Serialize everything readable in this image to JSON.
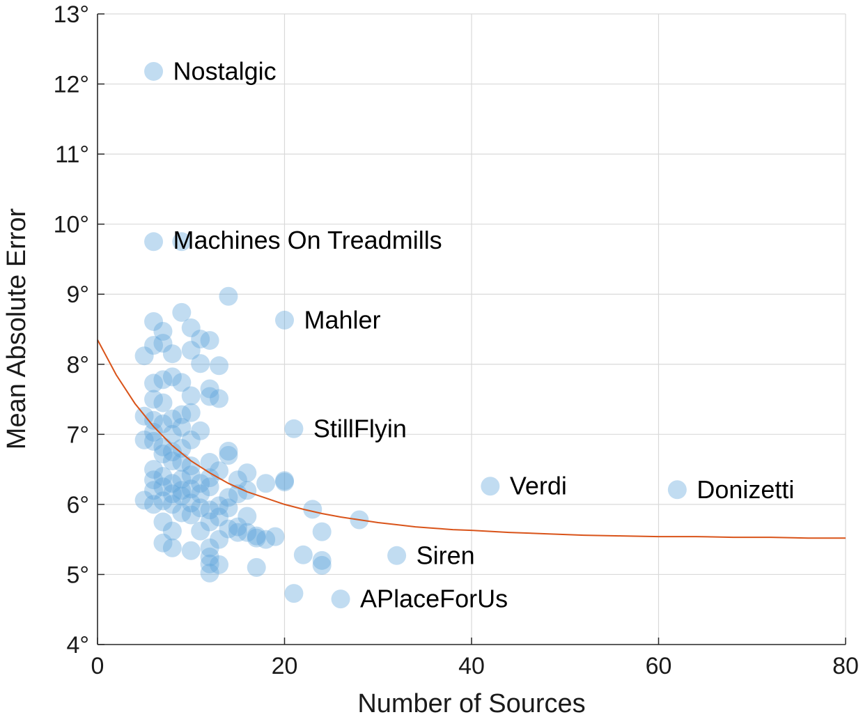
{
  "chart_data": {
    "type": "scatter",
    "title": "",
    "xlabel": "Number of Sources",
    "ylabel": "Mean Absolute Error",
    "xlim": [
      0,
      80
    ],
    "ylim": [
      4,
      13
    ],
    "x_ticks": [
      0,
      20,
      40,
      60,
      80
    ],
    "x_tick_labels": [
      "0",
      "20",
      "40",
      "60",
      "80"
    ],
    "y_ticks": [
      4,
      5,
      6,
      7,
      8,
      9,
      10,
      11,
      12,
      13
    ],
    "y_tick_labels": [
      "4°",
      "5°",
      "6°",
      "7°",
      "8°",
      "9°",
      "10°",
      "11°",
      "12°",
      "13°"
    ],
    "grid": true,
    "colors": {
      "points": "#5ba3d9",
      "fit": "#d95319",
      "grid": "#d9d9d9",
      "axis": "#262626"
    },
    "points": [
      {
        "x": 6,
        "y": 12.18
      },
      {
        "x": 6,
        "y": 9.75
      },
      {
        "x": 9,
        "y": 9.75
      },
      {
        "x": 14,
        "y": 8.97
      },
      {
        "x": 20,
        "y": 8.63
      },
      {
        "x": 21,
        "y": 7.08
      },
      {
        "x": 42,
        "y": 6.26
      },
      {
        "x": 62,
        "y": 6.21
      },
      {
        "x": 32,
        "y": 5.27
      },
      {
        "x": 26,
        "y": 4.65
      },
      {
        "x": 21,
        "y": 4.73
      },
      {
        "x": 6,
        "y": 8.61
      },
      {
        "x": 7,
        "y": 8.47
      },
      {
        "x": 9,
        "y": 8.74
      },
      {
        "x": 10,
        "y": 8.52
      },
      {
        "x": 6,
        "y": 8.27
      },
      {
        "x": 7,
        "y": 8.3
      },
      {
        "x": 8,
        "y": 8.15
      },
      {
        "x": 5,
        "y": 8.12
      },
      {
        "x": 11,
        "y": 8.36
      },
      {
        "x": 12,
        "y": 8.34
      },
      {
        "x": 11,
        "y": 8.01
      },
      {
        "x": 10,
        "y": 8.2
      },
      {
        "x": 13,
        "y": 7.98
      },
      {
        "x": 12,
        "y": 7.65
      },
      {
        "x": 13,
        "y": 7.51
      },
      {
        "x": 12,
        "y": 7.54
      },
      {
        "x": 6,
        "y": 7.73
      },
      {
        "x": 7,
        "y": 7.78
      },
      {
        "x": 8,
        "y": 7.82
      },
      {
        "x": 9,
        "y": 7.74
      },
      {
        "x": 6,
        "y": 7.5
      },
      {
        "x": 7,
        "y": 7.45
      },
      {
        "x": 10,
        "y": 7.55
      },
      {
        "x": 10,
        "y": 7.31
      },
      {
        "x": 5,
        "y": 7.26
      },
      {
        "x": 6,
        "y": 7.2
      },
      {
        "x": 7,
        "y": 7.15
      },
      {
        "x": 8,
        "y": 7.22
      },
      {
        "x": 9,
        "y": 7.28
      },
      {
        "x": 9,
        "y": 7.1
      },
      {
        "x": 6,
        "y": 7.03
      },
      {
        "x": 8,
        "y": 7.0
      },
      {
        "x": 11,
        "y": 7.05
      },
      {
        "x": 5,
        "y": 6.92
      },
      {
        "x": 6,
        "y": 6.9
      },
      {
        "x": 7,
        "y": 6.82
      },
      {
        "x": 7,
        "y": 6.72
      },
      {
        "x": 8,
        "y": 6.75
      },
      {
        "x": 9,
        "y": 6.8
      },
      {
        "x": 10,
        "y": 6.92
      },
      {
        "x": 9,
        "y": 6.6
      },
      {
        "x": 10,
        "y": 6.55
      },
      {
        "x": 8,
        "y": 6.62
      },
      {
        "x": 14,
        "y": 6.76
      },
      {
        "x": 14,
        "y": 6.7
      },
      {
        "x": 12,
        "y": 6.6
      },
      {
        "x": 13,
        "y": 6.48
      },
      {
        "x": 16,
        "y": 6.45
      },
      {
        "x": 6,
        "y": 6.5
      },
      {
        "x": 6,
        "y": 6.35
      },
      {
        "x": 7,
        "y": 6.4
      },
      {
        "x": 8,
        "y": 6.3
      },
      {
        "x": 9,
        "y": 6.36
      },
      {
        "x": 10,
        "y": 6.42
      },
      {
        "x": 11,
        "y": 6.3
      },
      {
        "x": 12,
        "y": 6.38
      },
      {
        "x": 15,
        "y": 6.35
      },
      {
        "x": 16,
        "y": 6.2
      },
      {
        "x": 18,
        "y": 6.3
      },
      {
        "x": 20,
        "y": 6.32
      },
      {
        "x": 20,
        "y": 6.34
      },
      {
        "x": 6,
        "y": 6.2
      },
      {
        "x": 7,
        "y": 6.25
      },
      {
        "x": 8,
        "y": 6.15
      },
      {
        "x": 9,
        "y": 6.2
      },
      {
        "x": 9,
        "y": 6.12
      },
      {
        "x": 10,
        "y": 6.22
      },
      {
        "x": 11,
        "y": 6.15
      },
      {
        "x": 12,
        "y": 6.25
      },
      {
        "x": 14,
        "y": 6.1
      },
      {
        "x": 15,
        "y": 6.15
      },
      {
        "x": 5,
        "y": 6.06
      },
      {
        "x": 6,
        "y": 6.0
      },
      {
        "x": 7,
        "y": 6.05
      },
      {
        "x": 8,
        "y": 6.0
      },
      {
        "x": 10,
        "y": 6.02
      },
      {
        "x": 11,
        "y": 5.95
      },
      {
        "x": 12,
        "y": 5.92
      },
      {
        "x": 13,
        "y": 5.98
      },
      {
        "x": 14,
        "y": 5.95
      },
      {
        "x": 9,
        "y": 5.88
      },
      {
        "x": 10,
        "y": 5.85
      },
      {
        "x": 13,
        "y": 5.82
      },
      {
        "x": 16,
        "y": 5.83
      },
      {
        "x": 23,
        "y": 5.93
      },
      {
        "x": 28,
        "y": 5.78
      },
      {
        "x": 7,
        "y": 5.75
      },
      {
        "x": 8,
        "y": 5.62
      },
      {
        "x": 11,
        "y": 5.62
      },
      {
        "x": 12,
        "y": 5.75
      },
      {
        "x": 14,
        "y": 5.65
      },
      {
        "x": 15,
        "y": 5.68
      },
      {
        "x": 15,
        "y": 5.6
      },
      {
        "x": 16,
        "y": 5.6
      },
      {
        "x": 17,
        "y": 5.52
      },
      {
        "x": 18,
        "y": 5.5
      },
      {
        "x": 19,
        "y": 5.54
      },
      {
        "x": 24,
        "y": 5.61
      },
      {
        "x": 7,
        "y": 5.45
      },
      {
        "x": 8,
        "y": 5.38
      },
      {
        "x": 10,
        "y": 5.34
      },
      {
        "x": 12,
        "y": 5.38
      },
      {
        "x": 12,
        "y": 5.25
      },
      {
        "x": 12,
        "y": 5.15
      },
      {
        "x": 13,
        "y": 5.14
      },
      {
        "x": 12,
        "y": 5.02
      },
      {
        "x": 17,
        "y": 5.1
      },
      {
        "x": 22,
        "y": 5.28
      },
      {
        "x": 24,
        "y": 5.2
      },
      {
        "x": 24,
        "y": 5.13
      },
      {
        "x": 13,
        "y": 5.5
      },
      {
        "x": 17,
        "y": 5.55
      }
    ],
    "labels": [
      {
        "text": "Nostalgic",
        "x": 6,
        "y": 12.18
      },
      {
        "text": "Machines On Treadmills",
        "x": 6,
        "y": 9.77
      },
      {
        "text": "Mahler",
        "x": 20,
        "y": 8.63
      },
      {
        "text": "StillFlyin",
        "x": 21,
        "y": 7.08
      },
      {
        "text": "Verdi",
        "x": 42,
        "y": 6.26
      },
      {
        "text": "Donizetti",
        "x": 62,
        "y": 6.21
      },
      {
        "text": "Siren",
        "x": 32,
        "y": 5.27
      },
      {
        "text": "APlaceForUs",
        "x": 26,
        "y": 4.65
      }
    ],
    "fit": {
      "x": [
        0,
        2,
        4,
        6,
        8,
        10,
        12,
        14,
        16,
        18,
        20,
        22,
        24,
        26,
        28,
        30,
        32,
        34,
        36,
        38,
        40,
        44,
        48,
        52,
        56,
        60,
        64,
        68,
        72,
        76,
        80
      ],
      "y": [
        8.35,
        7.85,
        7.44,
        7.11,
        6.84,
        6.62,
        6.45,
        6.3,
        6.18,
        6.09,
        6.0,
        5.93,
        5.87,
        5.82,
        5.78,
        5.74,
        5.71,
        5.68,
        5.66,
        5.64,
        5.63,
        5.6,
        5.58,
        5.56,
        5.55,
        5.54,
        5.54,
        5.53,
        5.53,
        5.52,
        5.52
      ]
    }
  }
}
